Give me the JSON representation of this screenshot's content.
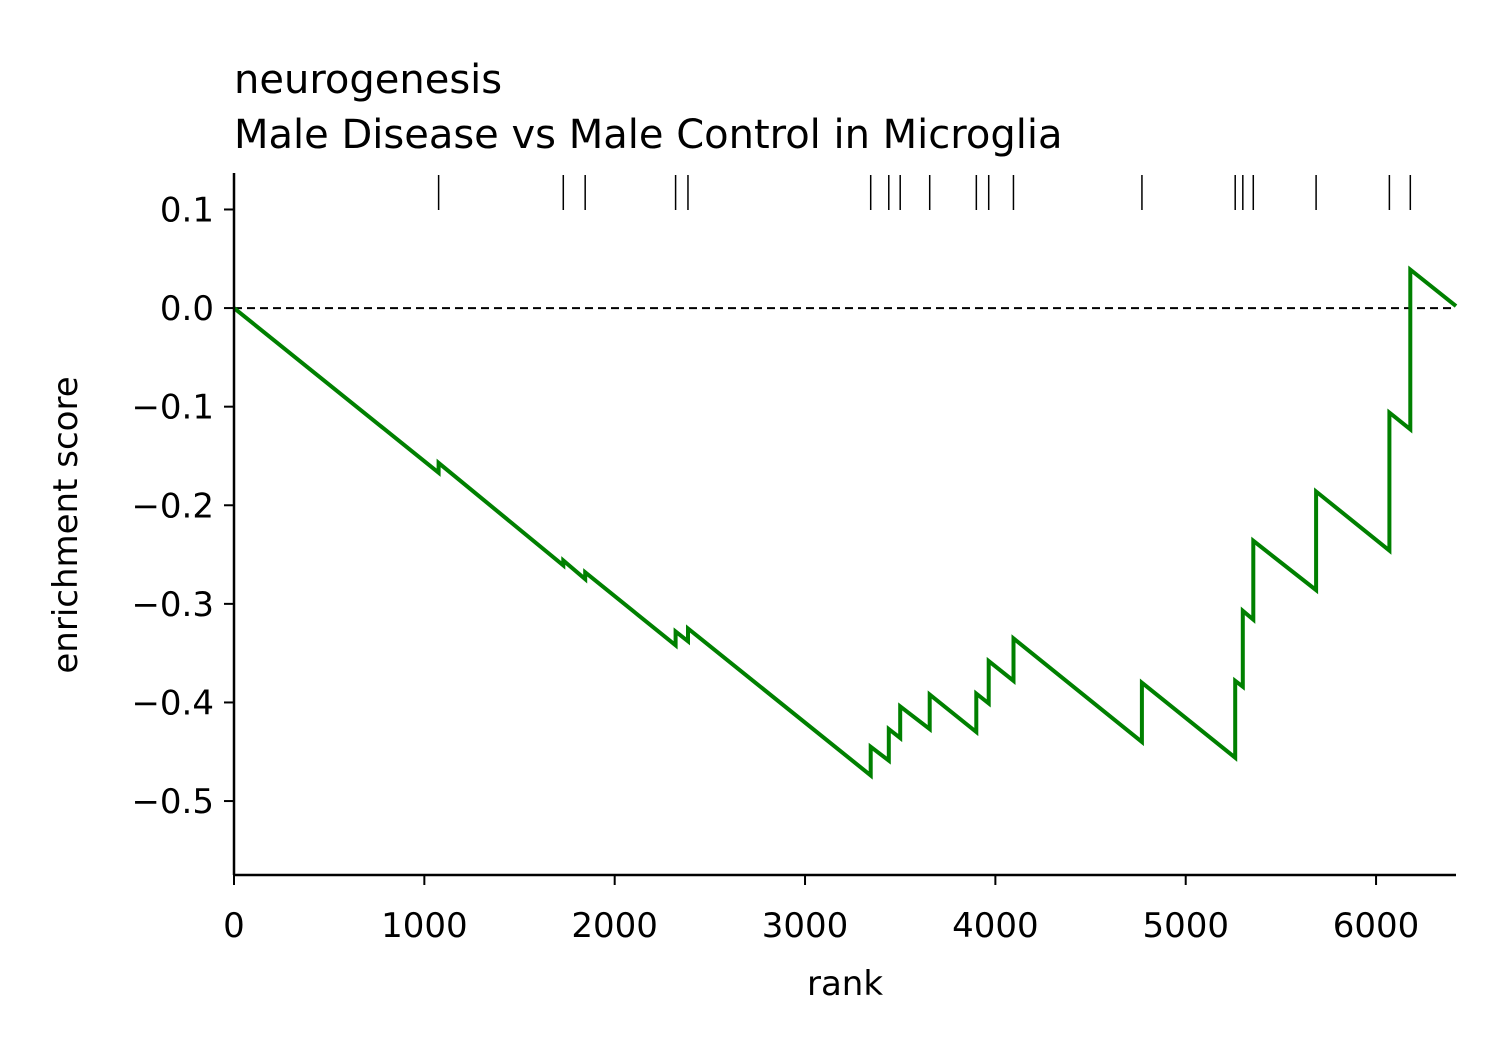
{
  "chart_data": {
    "type": "line",
    "title": "neurogenesis",
    "subtitle": "Male Disease vs Male Control in Microglia",
    "xlabel": "rank",
    "ylabel": "enrichment score",
    "xlim": [
      0,
      6420
    ],
    "ylim": [
      -0.575,
      0.137
    ],
    "x_ticks": [
      0,
      1000,
      2000,
      3000,
      4000,
      5000,
      6000
    ],
    "x_tick_labels": [
      "0",
      "1000",
      "2000",
      "3000",
      "4000",
      "5000",
      "6000"
    ],
    "y_ticks": [
      0.1,
      0.0,
      -0.1,
      -0.2,
      -0.3,
      -0.4,
      -0.5
    ],
    "y_tick_labels": [
      "0.1",
      "0.0",
      "−0.1",
      "−0.2",
      "−0.3",
      "−0.4",
      "−0.5"
    ],
    "zero_line": true,
    "grid": false,
    "line_color": "#008000",
    "hit_ranks": [
      1075,
      1730,
      1845,
      2320,
      2385,
      3345,
      3440,
      3500,
      3655,
      3900,
      3965,
      4095,
      4770,
      5260,
      5300,
      5355,
      5685,
      6070,
      6180
    ],
    "series": [
      {
        "x": [
          0,
          1075,
          1075,
          1730,
          1730,
          1845,
          1845,
          2320,
          2320,
          2385,
          2385,
          3345,
          3345,
          3440,
          3440,
          3500,
          3500,
          3655,
          3655,
          3900,
          3900,
          3965,
          3965,
          4095,
          4095,
          4770,
          4770,
          5260,
          5260,
          5300,
          5300,
          5355,
          5355,
          5685,
          5685,
          6070,
          6070,
          6180,
          6180,
          6420
        ],
        "y": [
          0.0,
          -0.167,
          -0.157,
          -0.261,
          -0.256,
          -0.275,
          -0.268,
          -0.342,
          -0.328,
          -0.338,
          -0.325,
          -0.474,
          -0.445,
          -0.459,
          -0.427,
          -0.436,
          -0.404,
          -0.427,
          -0.392,
          -0.43,
          -0.391,
          -0.401,
          -0.358,
          -0.378,
          -0.335,
          -0.44,
          -0.38,
          -0.456,
          -0.378,
          -0.384,
          -0.307,
          -0.316,
          -0.236,
          -0.286,
          -0.186,
          -0.246,
          -0.106,
          -0.123,
          0.039,
          0.002
        ]
      }
    ]
  }
}
